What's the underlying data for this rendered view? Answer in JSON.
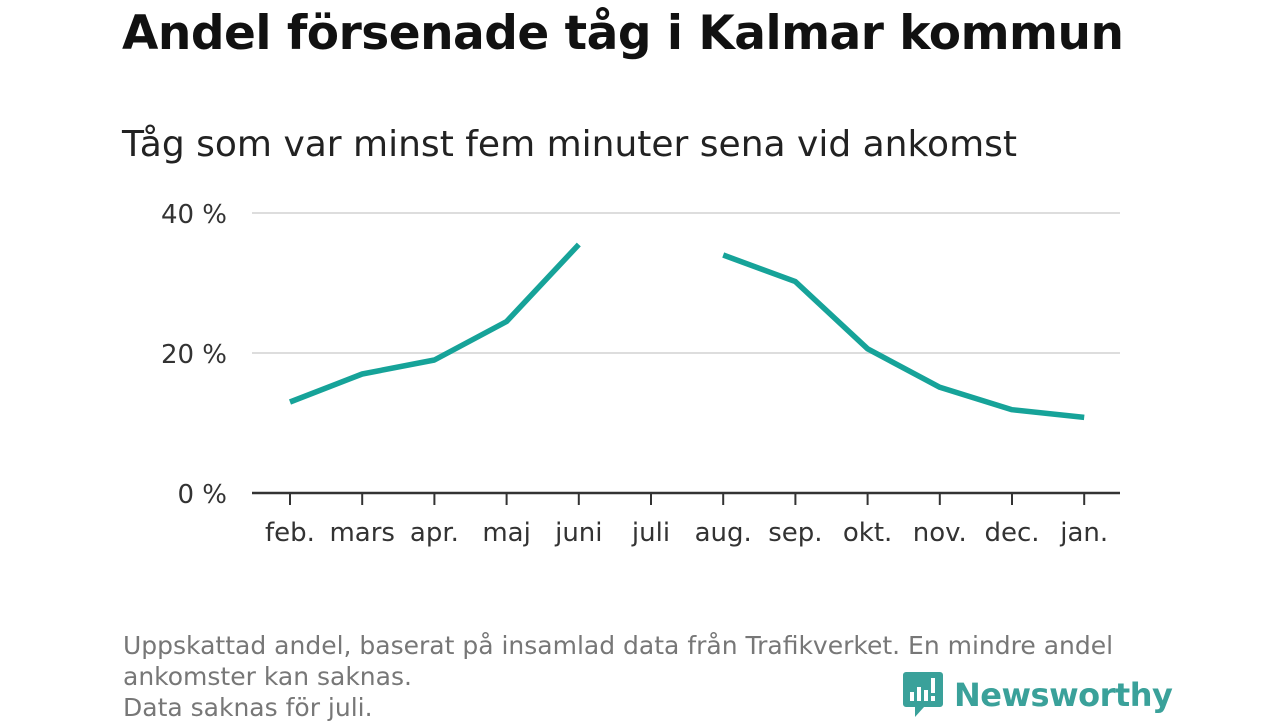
{
  "title": "Andel försenade tåg i Kalmar kommun",
  "subtitle": "Tåg som var minst fem minuter sena vid ankomst",
  "footnote": {
    "line1": "Uppskattad andel, baserat på insamlad data från Trafikverket. En mindre andel",
    "line2": "ankomster kan saknas.",
    "line3": "Data saknas för juli."
  },
  "brand": {
    "name": "Newsworthy",
    "icon": "newsworthy-logo-icon",
    "color": "#3aa19a"
  },
  "chart_data": {
    "type": "line",
    "categories": [
      "feb.",
      "mars",
      "apr.",
      "maj",
      "juni",
      "juli",
      "aug.",
      "sep.",
      "okt.",
      "nov.",
      "dec.",
      "jan."
    ],
    "series": [
      {
        "values": [
          13,
          17,
          19,
          24.5,
          35.5,
          null,
          34,
          30.2,
          20.6,
          15.1,
          11.9,
          10.8
        ],
        "color": "#16a399"
      }
    ],
    "ylim": [
      0,
      40
    ],
    "yticks": [
      0,
      20,
      40
    ],
    "ytick_labels": [
      "0 %",
      "20 %",
      "40 %"
    ],
    "grid": true,
    "xlabel": "",
    "ylabel": ""
  }
}
